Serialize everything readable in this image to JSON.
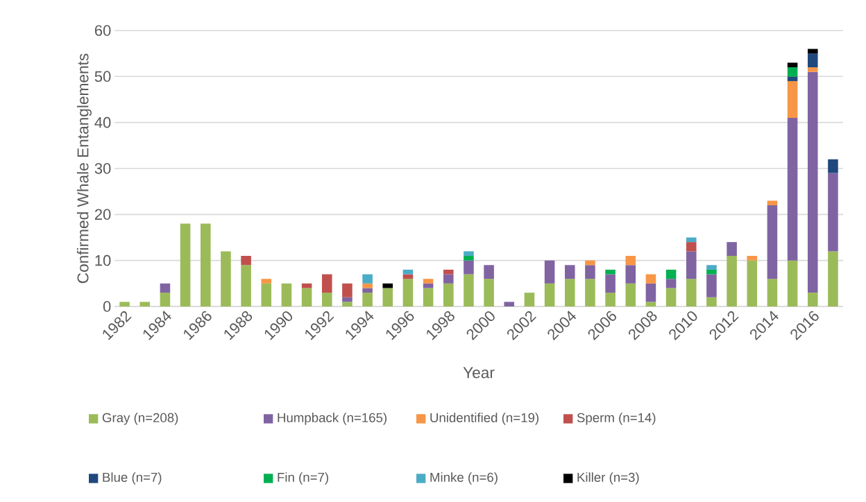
{
  "chart_data": {
    "type": "bar",
    "stacked": true,
    "xlabel": "Year",
    "ylabel": "Confirmed Whale Entanglements",
    "categories": [
      "1982",
      null,
      "1984",
      null,
      "1986",
      null,
      "1988",
      null,
      "1990",
      null,
      "1992",
      null,
      "1994",
      null,
      "1996",
      null,
      "1998",
      null,
      "2000",
      null,
      "2002",
      null,
      "2004",
      null,
      "2006",
      null,
      "2008",
      null,
      "2010",
      null,
      "2012",
      null,
      "2014",
      null,
      "2016",
      null
    ],
    "series": [
      {
        "name": "Gray (n=208)",
        "color": "#9bbb59",
        "values": [
          1,
          1,
          3,
          18,
          18,
          12,
          9,
          5,
          5,
          4,
          3,
          1,
          3,
          4,
          6,
          4,
          5,
          7,
          6,
          null,
          3,
          5,
          6,
          6,
          3,
          5,
          1,
          4,
          6,
          2,
          11,
          10,
          6,
          10,
          3,
          12
        ]
      },
      {
        "name": "Humpback (n=165)",
        "color": "#8064a2",
        "values": [
          null,
          null,
          2,
          null,
          null,
          null,
          null,
          null,
          null,
          null,
          null,
          1,
          1,
          null,
          null,
          1,
          2,
          3,
          3,
          1,
          null,
          5,
          3,
          3,
          4,
          4,
          4,
          2,
          6,
          5,
          3,
          null,
          16,
          31,
          48,
          17
        ]
      },
      {
        "name": "Unidentified (n=19)",
        "color": "#f79646",
        "values": [
          null,
          null,
          null,
          null,
          null,
          null,
          null,
          1,
          null,
          null,
          null,
          null,
          1,
          null,
          null,
          1,
          null,
          null,
          null,
          null,
          null,
          null,
          null,
          1,
          null,
          2,
          2,
          null,
          null,
          null,
          null,
          1,
          1,
          8,
          1,
          null
        ]
      },
      {
        "name": "Sperm (n=14)",
        "color": "#c0504d",
        "values": [
          null,
          null,
          null,
          null,
          null,
          null,
          2,
          null,
          null,
          1,
          4,
          3,
          null,
          null,
          1,
          null,
          1,
          null,
          null,
          null,
          null,
          null,
          null,
          null,
          null,
          null,
          null,
          null,
          2,
          null,
          null,
          null,
          null,
          null,
          null,
          null
        ]
      },
      {
        "name": "Blue (n=7)",
        "color": "#1f497d",
        "values": [
          null,
          null,
          null,
          null,
          null,
          null,
          null,
          null,
          null,
          null,
          null,
          null,
          null,
          null,
          null,
          null,
          null,
          null,
          null,
          null,
          null,
          null,
          null,
          null,
          null,
          null,
          null,
          null,
          null,
          null,
          null,
          null,
          null,
          1,
          3,
          3
        ]
      },
      {
        "name": "Fin (n=7)",
        "color": "#00b050",
        "values": [
          null,
          null,
          null,
          null,
          null,
          null,
          null,
          null,
          null,
          null,
          null,
          null,
          null,
          null,
          null,
          null,
          null,
          1,
          null,
          null,
          null,
          null,
          null,
          null,
          1,
          null,
          null,
          2,
          null,
          1,
          null,
          null,
          null,
          2,
          null,
          null
        ]
      },
      {
        "name": "Minke (n=6)",
        "color": "#4bacc6",
        "values": [
          null,
          null,
          null,
          null,
          null,
          null,
          null,
          null,
          null,
          null,
          null,
          null,
          2,
          null,
          1,
          null,
          null,
          1,
          null,
          null,
          null,
          null,
          null,
          null,
          null,
          null,
          null,
          null,
          1,
          1,
          null,
          null,
          null,
          null,
          null,
          null
        ]
      },
      {
        "name": "Killer (n=3)",
        "color": "#000000",
        "values": [
          null,
          null,
          null,
          null,
          null,
          null,
          null,
          null,
          null,
          null,
          null,
          null,
          null,
          1,
          null,
          null,
          null,
          null,
          null,
          null,
          null,
          null,
          null,
          null,
          null,
          null,
          null,
          null,
          null,
          null,
          null,
          null,
          null,
          1,
          1,
          null
        ]
      }
    ],
    "ylim": [
      0,
      60
    ],
    "yticks": [
      0,
      10,
      20,
      30,
      40,
      50,
      60
    ],
    "grid": "y",
    "legend": "bottom"
  }
}
